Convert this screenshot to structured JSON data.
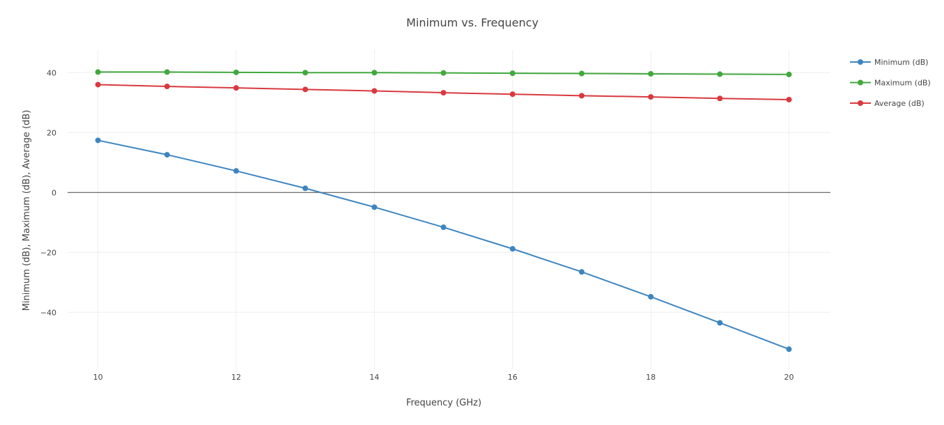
{
  "chart_data": {
    "type": "line",
    "title": "Minimum vs. Frequency",
    "xlabel": "Frequency (GHz)",
    "ylabel": "Minimum (dB), Maximum (dB), Average (dB)",
    "x": [
      10,
      11,
      12,
      13,
      14,
      15,
      16,
      17,
      18,
      19,
      20
    ],
    "xlim": [
      9.56,
      20.6
    ],
    "ylim": [
      -59,
      47.5
    ],
    "xticks": [
      10,
      12,
      14,
      16,
      18,
      20
    ],
    "yticks": [
      -40,
      -20,
      0,
      20,
      40
    ],
    "grid": true,
    "legend": "top-right",
    "series": [
      {
        "name": "Minimum (dB)",
        "color": "#3d85c0",
        "values": [
          17.4,
          12.6,
          7.2,
          1.4,
          -4.9,
          -11.6,
          -18.8,
          -26.5,
          -34.8,
          -43.5,
          -52.3
        ]
      },
      {
        "name": "Maximum (dB)",
        "color": "#41a83e",
        "values": [
          40.2,
          40.2,
          40.1,
          40.0,
          40.0,
          39.9,
          39.8,
          39.7,
          39.6,
          39.5,
          39.4
        ]
      },
      {
        "name": "Average (dB)",
        "color": "#d9393f",
        "values": [
          36.0,
          35.4,
          34.9,
          34.4,
          33.9,
          33.3,
          32.8,
          32.3,
          31.9,
          31.4,
          31.0
        ]
      }
    ]
  }
}
